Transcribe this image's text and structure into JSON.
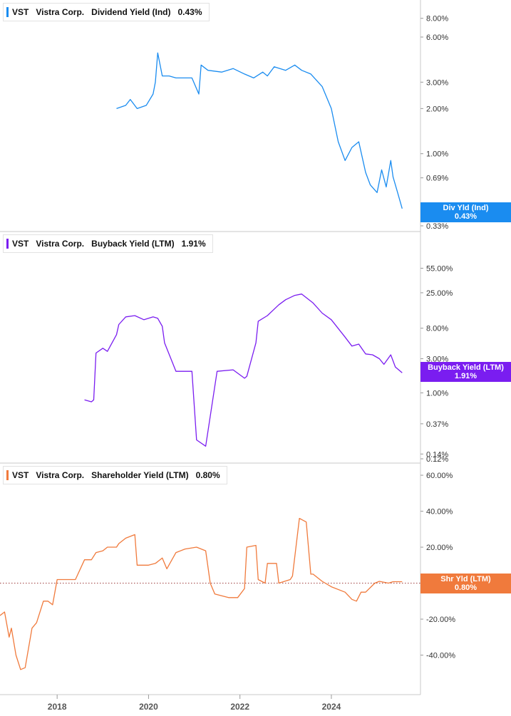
{
  "ticker": "VST",
  "company": "Vistra Corp.",
  "chart_data": [
    {
      "type": "line",
      "title": "Dividend Yield (Ind)",
      "ticker": "VST",
      "company": "Vistra Corp.",
      "latest_value": "0.43%",
      "flag_label": "Div Yld (Ind)",
      "flag_value": "0.43%",
      "color": "#1a8cf0",
      "scale": "log",
      "ylim": [
        0.33,
        9.5
      ],
      "y_ticks": [
        {
          "value": 8.0,
          "label": "8.00%"
        },
        {
          "value": 6.0,
          "label": "6.00%"
        },
        {
          "value": 3.0,
          "label": "3.00%"
        },
        {
          "value": 2.0,
          "label": "2.00%"
        },
        {
          "value": 1.0,
          "label": "1.00%"
        },
        {
          "value": 0.69,
          "label": "0.69%"
        },
        {
          "value": 0.37,
          "label": "0.37%"
        },
        {
          "value": 0.33,
          "label": "0.33%"
        }
      ],
      "x": [
        2019.3,
        2019.5,
        2019.6,
        2019.75,
        2019.95,
        2020.1,
        2020.15,
        2020.2,
        2020.3,
        2020.45,
        2020.6,
        2020.8,
        2020.95,
        2021.1,
        2021.15,
        2021.3,
        2021.6,
        2021.85,
        2022.1,
        2022.3,
        2022.5,
        2022.6,
        2022.75,
        2023.0,
        2023.2,
        2023.35,
        2023.55,
        2023.8,
        2024.0,
        2024.15,
        2024.3,
        2024.45,
        2024.6,
        2024.75,
        2024.85,
        2025.0,
        2025.1,
        2025.2,
        2025.3,
        2025.35,
        2025.45,
        2025.55
      ],
      "values": [
        2.0,
        2.1,
        2.3,
        2.0,
        2.1,
        2.5,
        3.0,
        4.7,
        3.3,
        3.3,
        3.2,
        3.2,
        3.2,
        2.5,
        3.9,
        3.6,
        3.5,
        3.7,
        3.4,
        3.2,
        3.5,
        3.3,
        3.8,
        3.6,
        3.9,
        3.6,
        3.4,
        2.8,
        2.0,
        1.2,
        0.9,
        1.1,
        1.2,
        0.75,
        0.62,
        0.55,
        0.78,
        0.6,
        0.9,
        0.7,
        0.55,
        0.43
      ]
    },
    {
      "type": "line",
      "title": "Buyback Yield (LTM)",
      "ticker": "VST",
      "company": "Vistra Corp.",
      "latest_value": "1.91%",
      "flag_label": "Buyback Yield (LTM)",
      "flag_value": "1.91%",
      "color": "#7a1df0",
      "scale": "log",
      "ylim": [
        0.12,
        90
      ],
      "y_ticks": [
        {
          "value": 55.0,
          "label": "55.00%"
        },
        {
          "value": 25.0,
          "label": "25.00%"
        },
        {
          "value": 8.0,
          "label": "8.00%"
        },
        {
          "value": 3.0,
          "label": "3.00%"
        },
        {
          "value": 1.0,
          "label": "1.00%"
        },
        {
          "value": 0.37,
          "label": "0.37%"
        },
        {
          "value": 0.14,
          "label": "0.14%"
        },
        {
          "value": 0.12,
          "label": "0.12%"
        }
      ],
      "x": [
        2018.6,
        2018.75,
        2018.8,
        2018.85,
        2019.0,
        2019.1,
        2019.3,
        2019.35,
        2019.5,
        2019.7,
        2019.9,
        2020.1,
        2020.2,
        2020.3,
        2020.35,
        2020.6,
        2020.95,
        2021.05,
        2021.25,
        2021.5,
        2021.85,
        2022.1,
        2022.15,
        2022.35,
        2022.4,
        2022.6,
        2022.85,
        2023.0,
        2023.2,
        2023.35,
        2023.6,
        2023.8,
        2024.0,
        2024.3,
        2024.45,
        2024.6,
        2024.75,
        2024.9,
        2025.05,
        2025.15,
        2025.3,
        2025.4,
        2025.55
      ],
      "values": [
        0.8,
        0.75,
        0.8,
        3.6,
        4.2,
        3.8,
        6.5,
        9.0,
        11.5,
        12.0,
        10.5,
        11.5,
        11.0,
        8.5,
        5.0,
        2.0,
        2.0,
        0.22,
        0.18,
        2.0,
        2.1,
        1.6,
        1.7,
        5.0,
        10.0,
        12.0,
        17.0,
        20.0,
        23.0,
        24.0,
        18.0,
        13.0,
        10.5,
        6.0,
        4.5,
        4.8,
        3.5,
        3.4,
        3.0,
        2.5,
        3.4,
        2.3,
        1.91
      ]
    },
    {
      "type": "line",
      "title": "Shareholder Yield (LTM)",
      "ticker": "VST",
      "company": "Vistra Corp.",
      "latest_value": "0.80%",
      "flag_label": "Shr Yld (LTM)",
      "flag_value": "0.80%",
      "color": "#f07a3c",
      "scale": "linear",
      "ylim": [
        -58,
        62
      ],
      "zero_line": "dotted",
      "y_ticks": [
        {
          "value": 60,
          "label": "60.00%"
        },
        {
          "value": 40,
          "label": "40.00%"
        },
        {
          "value": 20,
          "label": "20.00%"
        },
        {
          "value": 0,
          "label": "0.0"
        },
        {
          "value": -20,
          "label": "-20.00%"
        },
        {
          "value": -40,
          "label": "-40.00%"
        }
      ],
      "x": [
        2016.75,
        2016.85,
        2016.95,
        2017.0,
        2017.1,
        2017.2,
        2017.3,
        2017.45,
        2017.55,
        2017.7,
        2017.8,
        2017.9,
        2018.0,
        2018.1,
        2018.2,
        2018.4,
        2018.6,
        2018.75,
        2018.85,
        2019.0,
        2019.1,
        2019.3,
        2019.35,
        2019.5,
        2019.7,
        2019.75,
        2020.0,
        2020.15,
        2020.2,
        2020.3,
        2020.4,
        2020.6,
        2020.8,
        2021.05,
        2021.25,
        2021.35,
        2021.45,
        2021.6,
        2021.75,
        2021.95,
        2022.1,
        2022.15,
        2022.35,
        2022.4,
        2022.55,
        2022.6,
        2022.8,
        2022.85,
        2023.1,
        2023.15,
        2023.3,
        2023.45,
        2023.55,
        2023.6,
        2023.75,
        2023.8,
        2024.0,
        2024.3,
        2024.45,
        2024.55,
        2024.65,
        2024.75,
        2024.95,
        2025.05,
        2025.25,
        2025.35,
        2025.55
      ],
      "values": [
        -18,
        -16,
        -30,
        -25,
        -40,
        -48,
        -47,
        -25,
        -22,
        -10,
        -10,
        -12,
        2,
        2,
        2,
        2,
        13,
        13,
        17,
        18,
        20,
        20,
        22,
        25,
        27,
        10,
        10,
        11,
        12,
        14,
        8,
        17,
        19,
        20,
        18,
        0,
        -6,
        -7,
        -8,
        -8,
        -3,
        20,
        21,
        2,
        0,
        11,
        11,
        0,
        2,
        4,
        36,
        34,
        5,
        5,
        2,
        1,
        -2,
        -5,
        -9,
        -10,
        -5,
        -5,
        0,
        1,
        0,
        0.8,
        0.8
      ]
    }
  ],
  "x_axis": {
    "ticks": [
      {
        "value": 2018,
        "label": "2018"
      },
      {
        "value": 2020,
        "label": "2020"
      },
      {
        "value": 2022,
        "label": "2022"
      },
      {
        "value": 2024,
        "label": "2024"
      }
    ]
  }
}
